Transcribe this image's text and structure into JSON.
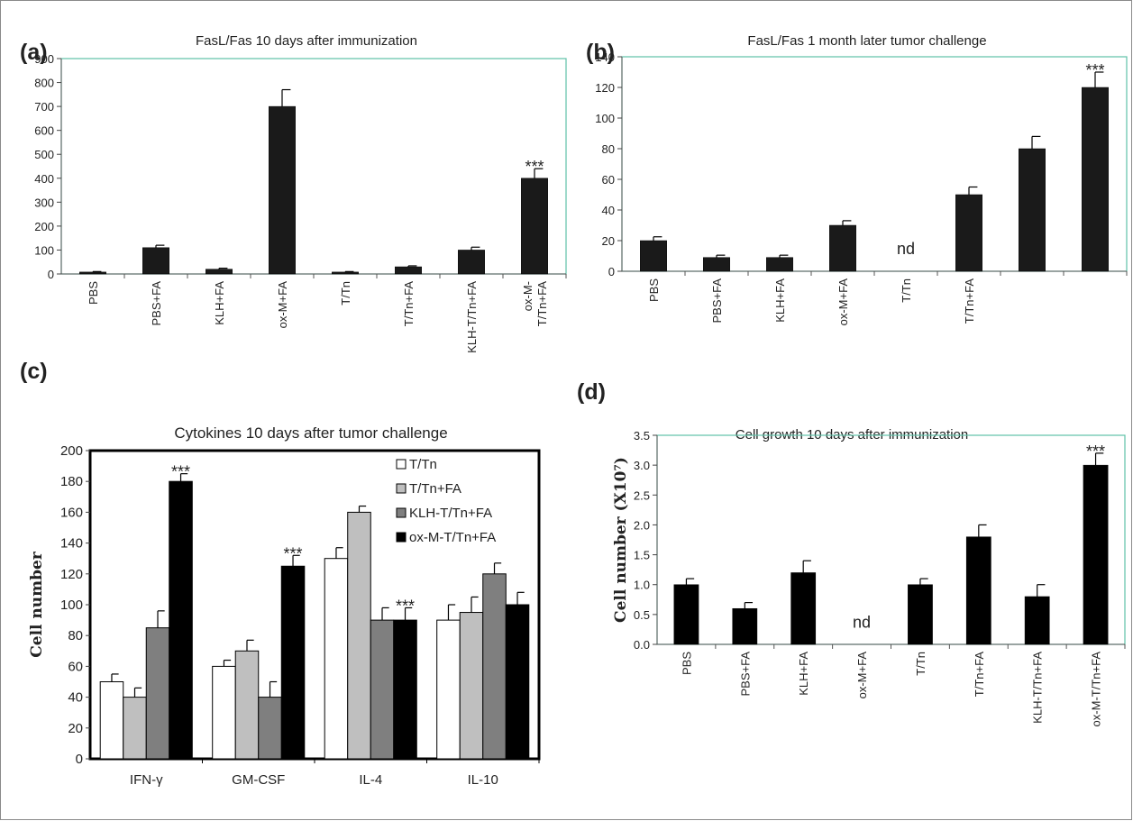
{
  "figure": {
    "panels": [
      "(a)",
      "(b)",
      "(c)",
      "(d)"
    ]
  },
  "chart_data": [
    {
      "panel": "(a)",
      "type": "bar",
      "title": "FasL/Fas 10 days after immunization",
      "xlabel": "",
      "ylabel": "",
      "ylim": [
        0,
        900
      ],
      "yticks": [
        0,
        100,
        200,
        300,
        400,
        500,
        600,
        700,
        800,
        900
      ],
      "categories": [
        "PBS",
        "PBS+FA",
        "KLH+FA",
        "ox-M+FA",
        "T/Tn",
        "T/Tn+FA",
        "KLH-T/Tn+FA",
        "ox-M-\nT/Tn+FA"
      ],
      "values": [
        8,
        110,
        20,
        700,
        8,
        30,
        100,
        400
      ],
      "errors": [
        2,
        10,
        4,
        70,
        2,
        4,
        12,
        40
      ],
      "annotations": [
        {
          "category_index": 7,
          "text": "***"
        }
      ],
      "bar_color": "#1a1a1a",
      "axis_color": "#5fc1a8",
      "grid": false
    },
    {
      "panel": "(b)",
      "type": "bar",
      "title": "FasL/Fas  1 month later tumor challenge",
      "xlabel": "",
      "ylabel": "",
      "ylim": [
        0,
        140
      ],
      "yticks": [
        0,
        20,
        40,
        60,
        80,
        100,
        120,
        140
      ],
      "categories": [
        "PBS",
        "PBS+FA",
        "KLH+FA",
        "ox-M+FA",
        "T/Tn",
        "T/Tn+FA",
        "",
        ""
      ],
      "values": [
        20,
        9,
        9,
        30,
        null,
        50,
        80,
        120
      ],
      "errors": [
        2.5,
        1.5,
        1.5,
        3,
        null,
        5,
        8,
        10
      ],
      "annotations": [
        {
          "category_index": 4,
          "text": "nd"
        },
        {
          "category_index": 7,
          "text": "***"
        }
      ],
      "bar_color": "#1a1a1a",
      "axis_color": "#5fc1a8",
      "grid": false
    },
    {
      "panel": "(c)",
      "type": "bar",
      "title": "Cytokines 10 days after tumor challenge",
      "xlabel": "",
      "ylabel": "Cell number",
      "ylim": [
        0,
        200
      ],
      "yticks": [
        0,
        20,
        40,
        60,
        80,
        100,
        120,
        140,
        160,
        180,
        200
      ],
      "categories": [
        "IFN-γ",
        "GM-CSF",
        "IL-4",
        "IL-10"
      ],
      "series": [
        {
          "name": "T/Tn",
          "color": "#ffffff",
          "values": [
            50,
            60,
            130,
            90
          ],
          "errors": [
            5,
            4,
            7,
            10
          ]
        },
        {
          "name": "T/Tn+FA",
          "color": "#bfbfbf",
          "values": [
            40,
            70,
            160,
            95
          ],
          "errors": [
            6,
            7,
            4,
            10
          ]
        },
        {
          "name": "KLH-T/Tn+FA",
          "color": "#7f7f7f",
          "values": [
            85,
            40,
            90,
            120
          ],
          "errors": [
            11,
            10,
            8,
            7
          ]
        },
        {
          "name": "ox-M-T/Tn+FA",
          "color": "#000000",
          "values": [
            180,
            125,
            90,
            100
          ],
          "errors": [
            5,
            7,
            8,
            8
          ]
        }
      ],
      "annotations": [
        {
          "category_index": 0,
          "series_index": 3,
          "text": "***"
        },
        {
          "category_index": 1,
          "series_index": 3,
          "text": "***"
        },
        {
          "category_index": 2,
          "series_index": 3,
          "text": "***"
        }
      ],
      "legend": "top-right",
      "grid": false
    },
    {
      "panel": "(d)",
      "type": "bar",
      "title": "Cell growth 10 days after immunization",
      "xlabel": "",
      "ylabel": "Cell number  (X10⁷)",
      "ylim": [
        0,
        3.5
      ],
      "yticks": [
        "0.0",
        "0.5",
        "1.0",
        "1.5",
        "2.0",
        "2.5",
        "3.0",
        "3.5"
      ],
      "categories": [
        "PBS",
        "PBS+FA",
        "KLH+FA",
        "ox-M+FA",
        "T/Tn",
        "T/Tn+FA",
        "KLH-T/Tn+FA",
        "ox-M-T/Tn+FA"
      ],
      "values": [
        1.0,
        0.6,
        1.2,
        null,
        1.0,
        1.8,
        0.8,
        3.0
      ],
      "errors": [
        0.1,
        0.1,
        0.2,
        null,
        0.1,
        0.2,
        0.2,
        0.2
      ],
      "annotations": [
        {
          "category_index": 3,
          "text": "nd"
        },
        {
          "category_index": 7,
          "text": "***"
        }
      ],
      "bar_color": "#000000",
      "axis_color": "#5fc1a8",
      "grid": false
    }
  ]
}
